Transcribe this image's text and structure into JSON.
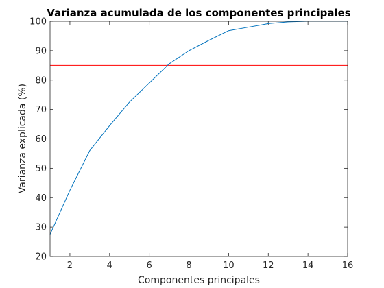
{
  "chart_data": {
    "type": "line",
    "title": "Varianza acumulada de los componentes principales",
    "xlabel": "Componentes principales",
    "ylabel": "Varianza explicada (%)",
    "xlim": [
      1,
      16
    ],
    "ylim": [
      20,
      100
    ],
    "xticks": [
      2,
      4,
      6,
      8,
      10,
      12,
      14,
      16
    ],
    "yticks": [
      20,
      30,
      40,
      50,
      60,
      70,
      80,
      90,
      100
    ],
    "grid": false,
    "series": [
      {
        "color": "#0072bd",
        "x": [
          1,
          2,
          3,
          4,
          5,
          6,
          7,
          8,
          9,
          10,
          11,
          12,
          13,
          14,
          15,
          16
        ],
        "y": [
          27.5,
          42.5,
          56,
          64.5,
          72.5,
          79,
          85.5,
          90,
          93.5,
          96.8,
          98,
          99.2,
          99.8,
          100,
          100,
          100
        ]
      }
    ],
    "reference_line": {
      "y": 85,
      "color": "#ff0000"
    }
  }
}
